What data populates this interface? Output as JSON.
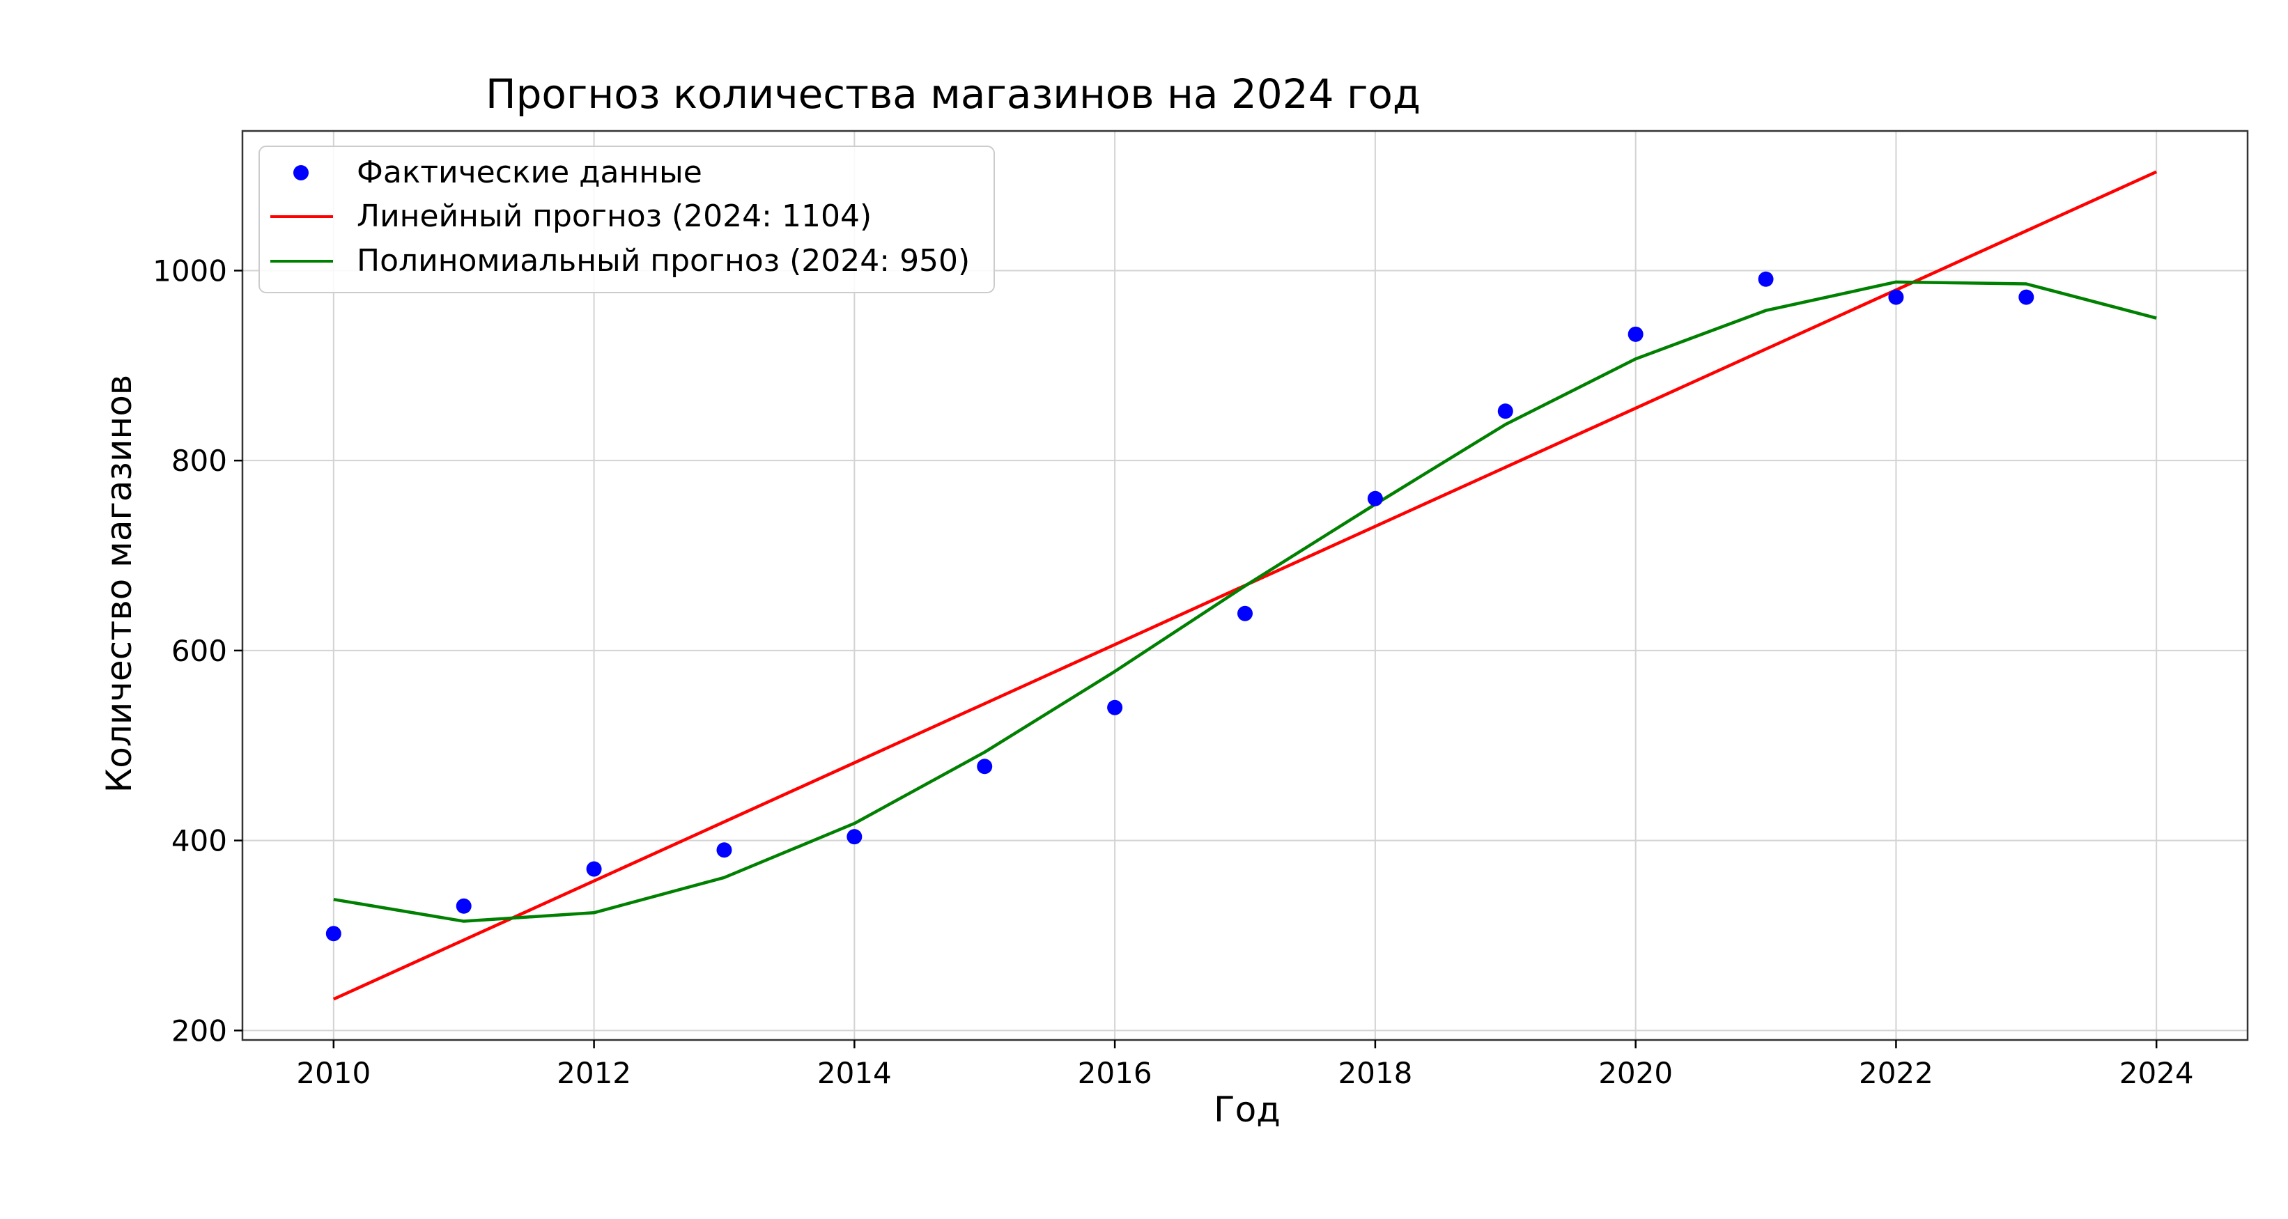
{
  "chart_data": {
    "type": "line",
    "title": "Прогноз количества магазинов на 2024 год",
    "xlabel": "Год",
    "ylabel": "Количество магазинов",
    "xlim": [
      2009.3,
      2024.7
    ],
    "ylim": [
      190,
      1147
    ],
    "xticks": [
      2010,
      2012,
      2014,
      2016,
      2018,
      2020,
      2022,
      2024
    ],
    "yticks": [
      200,
      400,
      600,
      800,
      1000
    ],
    "grid": true,
    "legend_position": "top-left",
    "series": [
      {
        "name": "Фактические данные",
        "kind": "scatter",
        "color": "#0000ff",
        "x": [
          2010,
          2011,
          2012,
          2013,
          2014,
          2015,
          2016,
          2017,
          2018,
          2019,
          2020,
          2021,
          2022,
          2023
        ],
        "y": [
          302,
          331,
          370,
          390,
          404,
          478,
          540,
          639,
          760,
          852,
          933,
          991,
          972,
          972
        ]
      },
      {
        "name": "Линейный прогноз (2024: 1104)",
        "kind": "line",
        "color": "#ff0000",
        "x": [
          2010,
          2024
        ],
        "y": [
          233,
          1104
        ]
      },
      {
        "name": "Полиномиальный прогноз (2024: 950)",
        "kind": "line",
        "color": "#008000",
        "x": [
          2010,
          2011,
          2012,
          2013,
          2014,
          2015,
          2016,
          2017,
          2018,
          2019,
          2020,
          2021,
          2022,
          2023,
          2024
        ],
        "y": [
          338,
          315,
          324,
          361,
          418,
          493,
          578,
          668,
          754,
          838,
          907,
          958,
          988,
          986,
          950
        ]
      }
    ]
  }
}
